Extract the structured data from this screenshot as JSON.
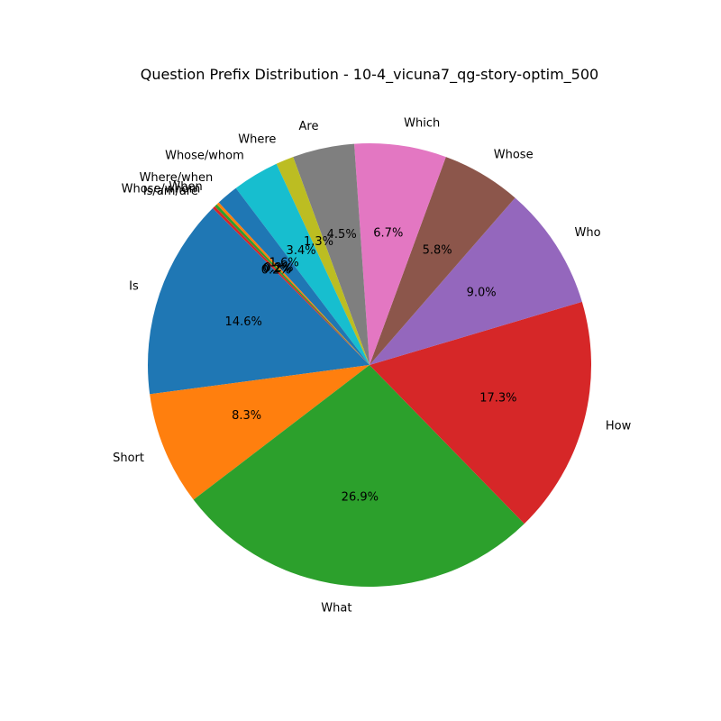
{
  "chart_data": {
    "type": "pie",
    "title": "Question Prefix Distribution - 10-4_vicuna7_qg-story-optim_500",
    "start_angle_deg": 135,
    "direction": "counterclockwise",
    "slices": [
      {
        "label": "Is",
        "value": 14.6,
        "pct_label": "14.6%",
        "color": "#1f77b4"
      },
      {
        "label": "Short",
        "value": 8.3,
        "pct_label": "8.3%",
        "color": "#ff7f0e"
      },
      {
        "label": "What",
        "value": 26.9,
        "pct_label": "26.9%",
        "color": "#2ca02c"
      },
      {
        "label": "How",
        "value": 17.3,
        "pct_label": "17.3%",
        "color": "#d62728"
      },
      {
        "label": "Who",
        "value": 9.0,
        "pct_label": "9.0%",
        "color": "#9467bd"
      },
      {
        "label": "Whose",
        "value": 5.8,
        "pct_label": "5.8%",
        "color": "#8c564b"
      },
      {
        "label": "Which",
        "value": 6.7,
        "pct_label": "6.7%",
        "color": "#e377c2"
      },
      {
        "label": "Are",
        "value": 4.5,
        "pct_label": "4.5%",
        "color": "#7f7f7f"
      },
      {
        "label": "Where",
        "value": 1.3,
        "pct_label": "1.3%",
        "color": "#bcbd22"
      },
      {
        "label": "Whose/whom",
        "value": 3.4,
        "pct_label": "3.4%",
        "color": "#17becf"
      },
      {
        "label": "Where/when",
        "value": 1.6,
        "pct_label": "1.6%",
        "color": "#1f77b4"
      },
      {
        "label": "When",
        "value": 0.2,
        "pct_label": "0.2%",
        "color": "#ff7f0e"
      },
      {
        "label": "Whose/whom",
        "value": 0.2,
        "pct_label": "0.2%",
        "color": "#2ca02c"
      },
      {
        "label": "Is/am/are",
        "value": 0.2,
        "pct_label": "0.2%",
        "color": "#d62728"
      }
    ]
  }
}
